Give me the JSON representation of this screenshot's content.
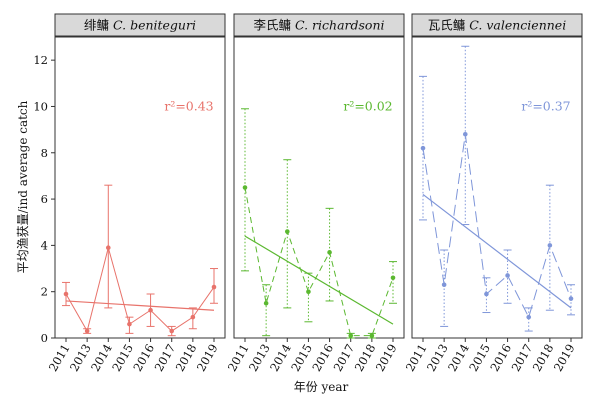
{
  "chart_data": {
    "type": "line",
    "xlabel": "年份 year",
    "ylabel": "平均渔获量/ind average catch",
    "ylim": [
      0,
      13
    ],
    "yticks": [
      0,
      2,
      4,
      6,
      8,
      10,
      12
    ],
    "categories": [
      "2011",
      "2013",
      "2014",
      "2015",
      "2016",
      "2017",
      "2018",
      "2019"
    ],
    "grid": false,
    "panels": [
      {
        "title": "绯鳙 C. beniteguri",
        "title_cn": "绯鳙",
        "title_latin": "C. beniteguri",
        "color": "#e8736b",
        "line_style": "solid",
        "r2_label": "r²=0.43",
        "values": [
          1.9,
          0.3,
          3.9,
          0.6,
          1.2,
          0.3,
          0.9,
          2.2
        ],
        "error_upper": [
          2.4,
          0.4,
          6.6,
          0.9,
          1.9,
          0.5,
          1.3,
          3.0
        ],
        "error_lower": [
          1.4,
          0.2,
          1.3,
          0.2,
          0.5,
          0.1,
          0.4,
          1.5
        ],
        "trend": [
          1.6,
          1.2
        ]
      },
      {
        "title": "李氏鳙 C. richardsoni",
        "title_cn": "李氏鳙",
        "title_latin": "C. richardsoni",
        "color": "#5bb830",
        "line_style": "dashed",
        "errorbar_style": "dotted",
        "r2_label": "r²=0.02",
        "values": [
          6.5,
          1.5,
          4.6,
          2.0,
          3.7,
          0.1,
          0.1,
          2.6
        ],
        "error_upper": [
          9.9,
          2.3,
          7.7,
          2.8,
          5.6,
          0.2,
          0.2,
          3.3
        ],
        "error_lower": [
          2.9,
          0.1,
          1.3,
          0.7,
          1.6,
          0.0,
          0.0,
          1.5
        ],
        "trend": [
          4.4,
          0.6
        ]
      },
      {
        "title": "瓦氏鳙 C. valenciennei",
        "title_cn": "瓦氏鳙",
        "title_latin": "C. valenciennei",
        "color": "#7f96d9",
        "line_style": "longdash",
        "errorbar_style": "dotted",
        "r2_label": "r²=0.37",
        "values": [
          8.2,
          2.3,
          8.8,
          1.9,
          2.7,
          0.9,
          4.0,
          1.7
        ],
        "error_upper": [
          11.3,
          3.8,
          12.6,
          2.6,
          3.8,
          1.3,
          6.6,
          2.3
        ],
        "error_lower": [
          5.1,
          0.5,
          4.9,
          1.1,
          1.5,
          0.3,
          1.2,
          1.0
        ],
        "trend": [
          6.2,
          1.3
        ]
      }
    ]
  }
}
